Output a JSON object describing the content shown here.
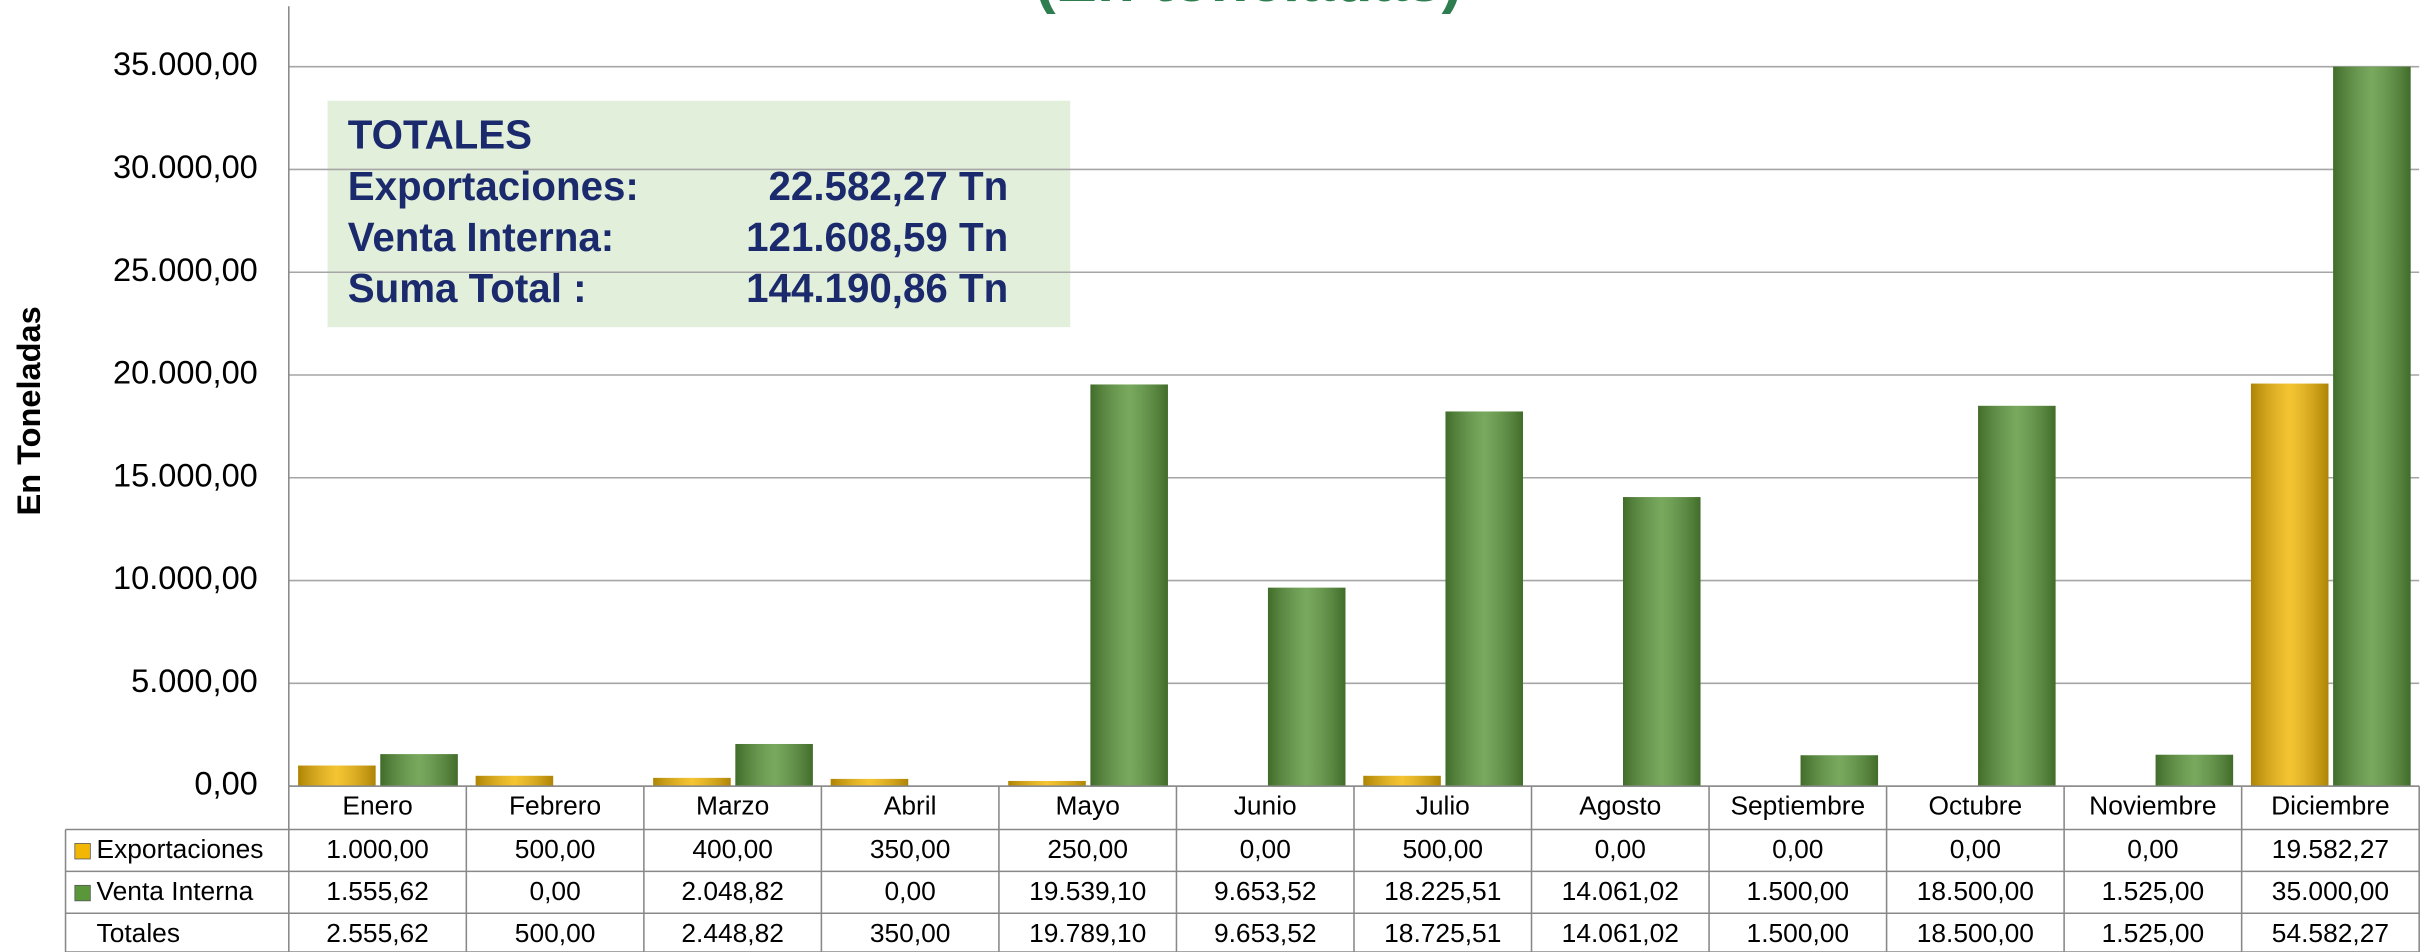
{
  "chart_data": {
    "type": "bar",
    "title": "(En toneladas)",
    "y_label": "En Toneladas",
    "categories": [
      "Enero",
      "Febrero",
      "Marzo",
      "Abril",
      "Mayo",
      "Junio",
      "Julio",
      "Agosto",
      "Septiembre",
      "Octubre",
      "Noviembre",
      "Diciembre"
    ],
    "series": [
      {
        "name": "Exportaciones",
        "color": "#f2b705",
        "values": [
          1000,
          500,
          400,
          350,
          250,
          0,
          500,
          0,
          0,
          0,
          0,
          19582.27
        ],
        "value_labels": [
          "1.000,00",
          "500,00",
          "400,00",
          "350,00",
          "250,00",
          "0,00",
          "500,00",
          "0,00",
          "0,00",
          "0,00",
          "0,00",
          "19.582,27"
        ]
      },
      {
        "name": "Venta Interna",
        "color": "#5a963a",
        "values": [
          1555.62,
          0,
          2048.82,
          0,
          19539.1,
          9653.52,
          18225.51,
          14061.02,
          1500,
          18500,
          1525,
          35000
        ],
        "value_labels": [
          "1.555,62",
          "0,00",
          "2.048,82",
          "0,00",
          "19.539,10",
          "9.653,52",
          "18.225,51",
          "14.061,02",
          "1.500,00",
          "18.500,00",
          "1.525,00",
          "35.000,00"
        ]
      }
    ],
    "totals_row": {
      "name": "Totales",
      "labels": [
        "2.555,62",
        "500,00",
        "2.448,82",
        "350,00",
        "19.789,10",
        "9.653,52",
        "18.725,51",
        "14.061,02",
        "1.500,00",
        "18.500,00",
        "1.525,00",
        "54.582,27"
      ]
    },
    "ylim": [
      0,
      35000
    ],
    "yticks": [
      {
        "value": 0,
        "label": "0,00"
      },
      {
        "value": 5000,
        "label": "5.000,00"
      },
      {
        "value": 10000,
        "label": "10.000,00"
      },
      {
        "value": 15000,
        "label": "15.000,00"
      },
      {
        "value": 20000,
        "label": "20.000,00"
      },
      {
        "value": 25000,
        "label": "25.000,00"
      },
      {
        "value": 30000,
        "label": "30.000,00"
      },
      {
        "value": 35000,
        "label": "35.000,00"
      }
    ],
    "grid": true,
    "annotation": {
      "heading": "TOTALES",
      "rows": [
        {
          "label": "Exportaciones:",
          "value": "22.582,27 Tn"
        },
        {
          "label": "Venta Interna:",
          "value": "121.608,59 Tn"
        },
        {
          "label": "Suma Total :",
          "value": "144.190,86 Tn"
        }
      ]
    }
  }
}
